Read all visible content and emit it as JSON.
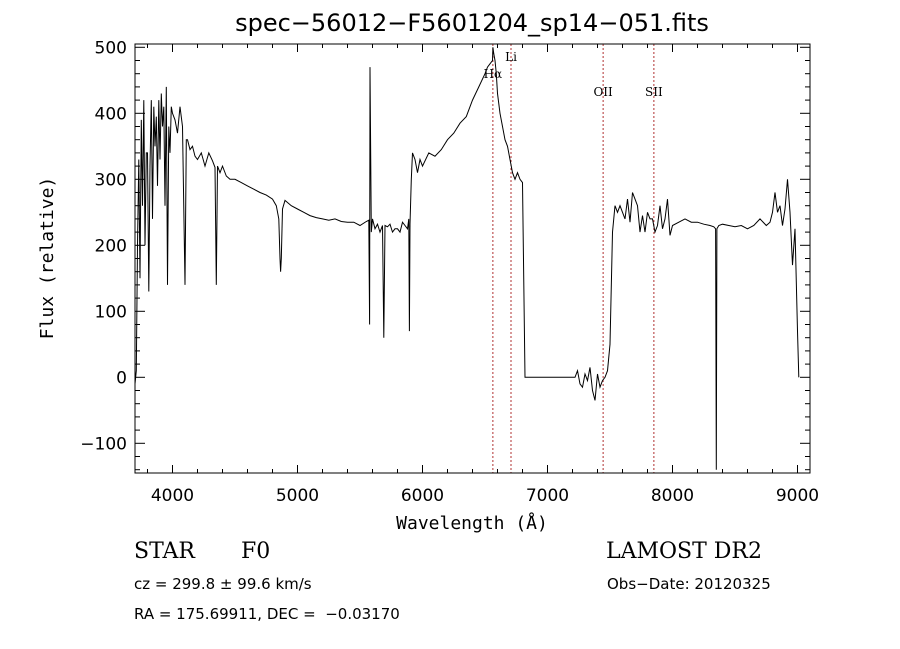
{
  "chart_data": {
    "type": "line",
    "title": "spec−56012−F5601204_sp14−051.fits",
    "xlabel": "Wavelength (Å)",
    "ylabel": "Flux (relative)",
    "xlim": [
      3700,
      9100
    ],
    "ylim": [
      -145,
      505
    ],
    "xticks": [
      4000,
      5000,
      6000,
      7000,
      8000,
      9000
    ],
    "yticks": [
      -100,
      0,
      100,
      200,
      300,
      400,
      500
    ],
    "xtick_labels": [
      "4000",
      "5000",
      "6000",
      "7000",
      "8000",
      "9000"
    ],
    "ytick_labels": [
      "−100",
      "0",
      "100",
      "200",
      "300",
      "400",
      "500"
    ],
    "grid": false,
    "series": [
      {
        "x": [
          3700,
          3710,
          3720,
          3730,
          3740,
          3750,
          3760,
          3770,
          3780,
          3790,
          3800,
          3810,
          3820,
          3830,
          3840,
          3850,
          3860,
          3870,
          3880,
          3890,
          3900,
          3910,
          3920,
          3930,
          3940,
          3950,
          3960,
          3970,
          3980,
          3990,
          4000,
          4020,
          4040,
          4060,
          4080,
          4100,
          4110,
          4120,
          4140,
          4160,
          4180,
          4200,
          4230,
          4260,
          4290,
          4320,
          4340,
          4350,
          4360,
          4380,
          4400,
          4430,
          4460,
          4500,
          4550,
          4600,
          4650,
          4700,
          4750,
          4800,
          4830,
          4850,
          4860,
          4865,
          4870,
          4880,
          4900,
          4950,
          5000,
          5050,
          5100,
          5150,
          5200,
          5250,
          5300,
          5350,
          5400,
          5450,
          5500,
          5550,
          5570,
          5577,
          5580,
          5590,
          5600,
          5620,
          5640,
          5660,
          5680,
          5690,
          5700,
          5720,
          5740,
          5760,
          5780,
          5800,
          5820,
          5840,
          5860,
          5880,
          5890,
          5895,
          5900,
          5910,
          5920,
          5940,
          5960,
          5980,
          6000,
          6050,
          6100,
          6150,
          6200,
          6250,
          6300,
          6350,
          6400,
          6450,
          6500,
          6520,
          6540,
          6560,
          6563,
          6570,
          6580,
          6590,
          6600,
          6620,
          6640,
          6660,
          6680,
          6700,
          6720,
          6740,
          6760,
          6780,
          6800,
          6820,
          6830,
          6840,
          6860,
          6900,
          6950,
          7000,
          7050,
          7100,
          7150,
          7200,
          7220,
          7240,
          7260,
          7280,
          7300,
          7320,
          7340,
          7360,
          7380,
          7400,
          7420,
          7440,
          7460,
          7480,
          7500,
          7520,
          7540,
          7560,
          7580,
          7600,
          7620,
          7640,
          7660,
          7680,
          7700,
          7720,
          7740,
          7760,
          7780,
          7800,
          7820,
          7840,
          7860,
          7880,
          7900,
          7920,
          7940,
          7960,
          7980,
          8000,
          8050,
          8100,
          8150,
          8200,
          8250,
          8300,
          8330,
          8345,
          8350,
          8355,
          8370,
          8400,
          8450,
          8500,
          8550,
          8600,
          8650,
          8700,
          8750,
          8780,
          8800,
          8820,
          8840,
          8860,
          8880,
          8900,
          8920,
          8940,
          8960,
          8980,
          9000,
          9010
        ],
        "values": [
          -10,
          10,
          200,
          330,
          150,
          390,
          260,
          420,
          200,
          340,
          340,
          130,
          320,
          420,
          240,
          410,
          350,
          395,
          290,
          420,
          330,
          430,
          380,
          410,
          260,
          440,
          140,
          380,
          340,
          410,
          400,
          390,
          370,
          410,
          380,
          140,
          360,
          360,
          345,
          350,
          335,
          330,
          340,
          320,
          340,
          328,
          318,
          140,
          320,
          310,
          320,
          305,
          300,
          300,
          295,
          290,
          285,
          280,
          276,
          270,
          260,
          240,
          180,
          160,
          180,
          255,
          268,
          260,
          255,
          250,
          245,
          242,
          240,
          238,
          240,
          236,
          235,
          235,
          230,
          236,
          238,
          80,
          470,
          220,
          240,
          225,
          232,
          220,
          230,
          60,
          230,
          228,
          232,
          220,
          225,
          225,
          220,
          235,
          230,
          225,
          240,
          70,
          232,
          300,
          340,
          330,
          310,
          330,
          320,
          340,
          335,
          345,
          360,
          370,
          385,
          395,
          420,
          440,
          460,
          470,
          475,
          480,
          500,
          490,
          480,
          460,
          430,
          400,
          380,
          360,
          350,
          330,
          310,
          300,
          310,
          300,
          295,
          0,
          0,
          0,
          0,
          0,
          0,
          0,
          0,
          0,
          0,
          0,
          0,
          10,
          -10,
          -15,
          5,
          -5,
          15,
          -20,
          -35,
          5,
          -15,
          -5,
          0,
          10,
          50,
          220,
          260,
          250,
          260,
          250,
          240,
          270,
          235,
          280,
          270,
          260,
          220,
          245,
          220,
          250,
          240,
          240,
          220,
          230,
          260,
          225,
          240,
          270,
          215,
          230,
          235,
          240,
          235,
          235,
          232,
          230,
          228,
          225,
          -140,
          225,
          230,
          232,
          230,
          228,
          230,
          225,
          230,
          240,
          230,
          235,
          250,
          280,
          250,
          260,
          230,
          255,
          300,
          250,
          170,
          225,
          70,
          0
        ]
      }
    ],
    "annotations": [
      {
        "x": 6563,
        "label": "Hα"
      },
      {
        "x": 6708,
        "label": "Li"
      },
      {
        "x": 7445,
        "label": "OII"
      },
      {
        "x": 7851,
        "label": "SII"
      }
    ]
  },
  "info": {
    "object_class": "STAR",
    "subclass": "F0",
    "survey": "LAMOST DR2",
    "cz": "cz = 299.8 ± 99.6 km/s",
    "obs_date": "Obs−Date: 20120325",
    "radec": "RA = 175.69911, DEC =  −0.03170"
  }
}
